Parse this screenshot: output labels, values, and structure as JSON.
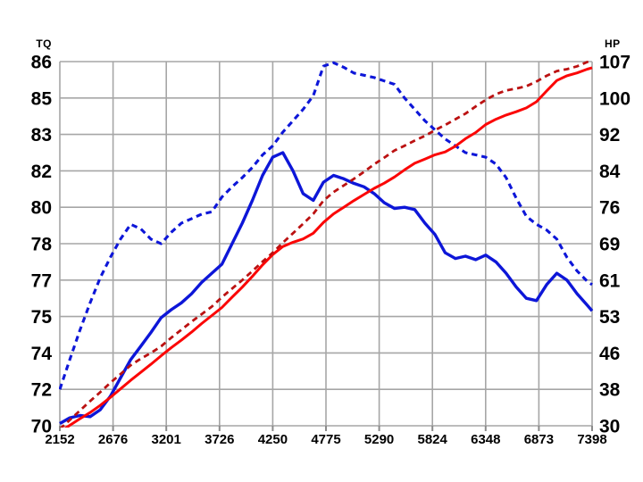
{
  "chart": {
    "left_axis": {
      "title": "TQ",
      "min": 70,
      "max": 86,
      "labels": [
        "86",
        "85",
        "83",
        "82",
        "80",
        "78",
        "77",
        "75",
        "74",
        "72",
        "70"
      ]
    },
    "right_axis": {
      "title": "HP",
      "min": 30,
      "max": 107,
      "labels": [
        "107",
        "100",
        "92",
        "84",
        "76",
        "69",
        "61",
        "53",
        "46",
        "38",
        "30"
      ]
    },
    "x_axis": {
      "min": 2152,
      "max": 7398,
      "labels": [
        "2152",
        "2676",
        "3201",
        "3726",
        "4250",
        "4775",
        "5290",
        "5824",
        "6348",
        "6873",
        "7398"
      ]
    },
    "colors": {
      "blue_line": "#0d16d8",
      "red_solid_line": "#fb0606",
      "red_dashed_line": "#bb1111",
      "grid": "#a6a6a6",
      "tick": "#8a8a8a",
      "text": "#000000"
    }
  },
  "chart_data": {
    "type": "line",
    "title": "",
    "legend": "none",
    "grid": "on",
    "left_axis_label": "TQ",
    "right_axis_label": "HP",
    "left_ylim": [
      70,
      86
    ],
    "right_ylim": [
      30,
      107
    ],
    "xlim": [
      2152,
      7398
    ],
    "x_ticks": [
      2152,
      2676,
      3201,
      3726,
      4250,
      4775,
      5290,
      5824,
      6348,
      6873,
      7398
    ],
    "x": [
      2152,
      2250,
      2350,
      2450,
      2550,
      2650,
      2750,
      2850,
      2950,
      3050,
      3150,
      3250,
      3350,
      3450,
      3550,
      3650,
      3750,
      3850,
      3950,
      4050,
      4150,
      4250,
      4350,
      4450,
      4550,
      4650,
      4750,
      4850,
      4950,
      5050,
      5150,
      5250,
      5350,
      5450,
      5550,
      5650,
      5750,
      5850,
      5950,
      6050,
      6150,
      6250,
      6350,
      6450,
      6550,
      6650,
      6750,
      6850,
      6950,
      7050,
      7150,
      7250,
      7350,
      7398
    ],
    "series": [
      {
        "name": "tq-solid",
        "axis": "left",
        "style": "solid",
        "width": 3.4,
        "values": [
          70.1,
          70.35,
          70.45,
          70.4,
          70.7,
          71.3,
          72.1,
          72.9,
          73.5,
          74.1,
          74.75,
          75.1,
          75.4,
          75.8,
          76.3,
          76.7,
          77.1,
          78.0,
          78.9,
          79.9,
          81.0,
          81.8,
          82.0,
          81.2,
          80.2,
          79.9,
          80.7,
          81.0,
          80.85,
          80.65,
          80.5,
          80.2,
          79.8,
          79.55,
          79.6,
          79.5,
          78.9,
          78.4,
          77.6,
          77.35,
          77.45,
          77.3,
          77.5,
          77.2,
          76.7,
          76.1,
          75.6,
          75.5,
          76.2,
          76.7,
          76.4,
          75.8,
          75.3,
          75.05
        ]
      },
      {
        "name": "tq-dashed",
        "axis": "left",
        "style": "dashed",
        "width": 3.1,
        "values": [
          71.6,
          72.9,
          74.2,
          75.4,
          76.5,
          77.4,
          78.2,
          78.85,
          78.65,
          78.2,
          78.0,
          78.5,
          78.9,
          79.1,
          79.3,
          79.4,
          80.05,
          80.5,
          80.9,
          81.35,
          81.9,
          82.3,
          82.9,
          83.4,
          83.9,
          84.5,
          85.8,
          85.95,
          85.75,
          85.5,
          85.4,
          85.3,
          85.15,
          85.0,
          84.4,
          83.9,
          83.4,
          83.0,
          82.6,
          82.3,
          82.0,
          81.9,
          81.8,
          81.5,
          80.9,
          80.0,
          79.2,
          78.85,
          78.6,
          78.2,
          77.4,
          76.8,
          76.35,
          76.2
        ]
      },
      {
        "name": "hp-solid",
        "axis": "right",
        "style": "solid",
        "width": 3.0,
        "values": [
          28.7,
          30.1,
          31.5,
          32.8,
          34.3,
          36.0,
          37.8,
          39.6,
          41.3,
          43.0,
          44.8,
          46.5,
          48.1,
          49.8,
          51.6,
          53.3,
          55.0,
          57.2,
          59.3,
          61.6,
          64.0,
          66.2,
          67.9,
          68.8,
          69.5,
          70.7,
          73.0,
          74.8,
          76.2,
          77.6,
          78.9,
          80.2,
          81.3,
          82.6,
          84.1,
          85.5,
          86.4,
          87.3,
          87.9,
          89.1,
          90.7,
          92.0,
          93.7,
          94.8,
          95.7,
          96.4,
          97.2,
          98.5,
          100.8,
          103.0,
          104.0,
          104.6,
          105.4,
          105.7
        ]
      },
      {
        "name": "hp-dashed",
        "axis": "right",
        "style": "dashed",
        "width": 2.8,
        "values": [
          29.3,
          31.2,
          33.2,
          35.2,
          37.1,
          39.1,
          40.9,
          42.8,
          44.2,
          45.4,
          46.8,
          48.6,
          50.3,
          52.0,
          53.6,
          55.2,
          57.2,
          59.0,
          60.8,
          62.7,
          64.7,
          66.6,
          68.7,
          70.7,
          72.7,
          74.8,
          77.6,
          79.4,
          80.8,
          82.2,
          83.7,
          85.3,
          86.7,
          88.2,
          89.2,
          90.3,
          91.3,
          92.5,
          93.6,
          94.8,
          96.0,
          97.5,
          98.9,
          100.1,
          100.9,
          101.3,
          101.8,
          102.8,
          104.0,
          105.0,
          105.4,
          106.0,
          106.9,
          107.0
        ]
      }
    ]
  }
}
